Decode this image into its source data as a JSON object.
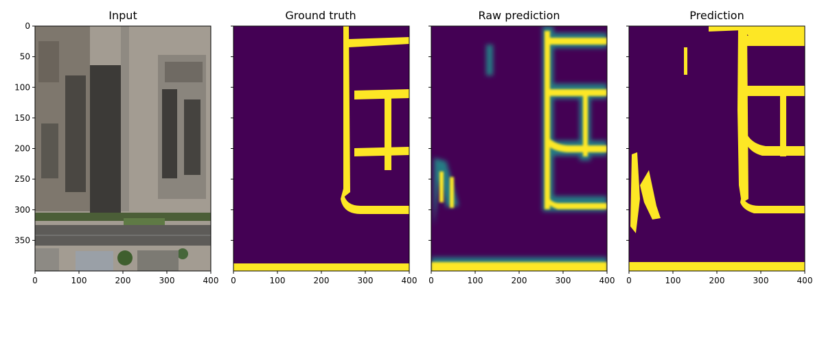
{
  "panels": [
    {
      "title": "Input",
      "show_yticks": true
    },
    {
      "title": "Ground truth",
      "show_yticks": false
    },
    {
      "title": "Raw prediction",
      "show_yticks": false
    },
    {
      "title": "Prediction",
      "show_yticks": false
    }
  ],
  "axes": {
    "x_ticks": [
      0,
      100,
      200,
      300,
      400
    ],
    "y_ticks": [
      0,
      50,
      100,
      150,
      200,
      250,
      300,
      350
    ],
    "xlim": [
      0,
      400
    ],
    "ylim": [
      400,
      0
    ]
  },
  "colors": {
    "background_class": "#440154",
    "road_class": "#fde725",
    "soft_edge": "#21918c",
    "aerial_ground": "#a39c92"
  }
}
